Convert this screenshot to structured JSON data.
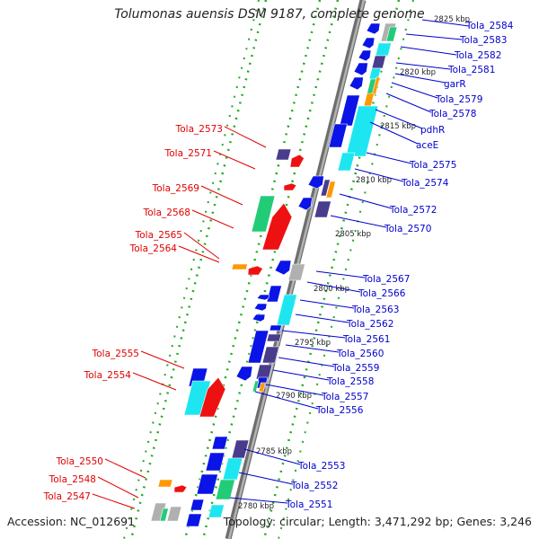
{
  "title": "Tolumonas auensis DSM 9187, complete genome",
  "accession_text": "Accession: NC_012691",
  "info_text": "Topology: circular; Length: 3,471,292 bp; Genes: 3,246",
  "colors": {
    "backbone": "#8c8c8c",
    "ticks": "#22aa22",
    "label_reverse": "#e00000",
    "label_forward": "#0000cc",
    "gene_blue": "#0a14e6",
    "gene_cyan": "#1ee6f0",
    "gene_red": "#ee1111",
    "gene_green": "#22cc77",
    "gene_purple": "#4a3c8c",
    "gene_grey": "#b0b0b0",
    "gene_orange": "#ff9900"
  },
  "scale_labels": [
    "2825 kbp",
    "2820 kbp",
    "2815 kbp",
    "2810 kbp",
    "2805 kbp",
    "2800 kbp",
    "2795 kbp",
    "2790 kbp",
    "2785 kbp",
    "2780 kbp"
  ],
  "forward_labels": [
    "Tola_2584",
    "Tola_2583",
    "Tola_2582",
    "Tola_2581",
    "garR",
    "Tola_2579",
    "Tola_2578",
    "pdhR",
    "aceE",
    "Tola_2575",
    "Tola_2574",
    "Tola_2572",
    "Tola_2570",
    "Tola_2567",
    "Tola_2566",
    "Tola_2563",
    "Tola_2562",
    "Tola_2561",
    "Tola_2560",
    "Tola_2559",
    "Tola_2558",
    "Tola_2557",
    "Tola_2556",
    "Tola_2553",
    "Tola_2552",
    "Tola_2551"
  ],
  "reverse_labels": [
    "Tola_2573",
    "Tola_2571",
    "Tola_2569",
    "Tola_2568",
    "Tola_2565",
    "Tola_2564",
    "Tola_2555",
    "Tola_2554",
    "Tola_2550",
    "Tola_2548",
    "Tola_2547"
  ]
}
